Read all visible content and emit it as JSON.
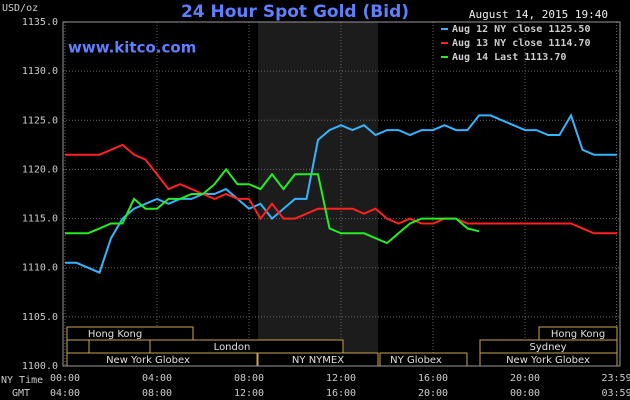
{
  "chart_data": {
    "type": "line",
    "title": "24 Hour Spot Gold (Bid)",
    "date": "August 14, 2015 19:40",
    "site": "www.kitco.com",
    "unit": "USD/oz",
    "x_label_ny": "NY Time",
    "x_label_gmt": "GMT",
    "sessions": [
      "Hong Kong",
      "Hong Kong",
      "London",
      "Sydney",
      "New York Globex",
      "NY NYMEX",
      "NY Globex",
      "New York Globex"
    ],
    "x": [
      0,
      0.5,
      1,
      1.5,
      2,
      2.5,
      3,
      3.5,
      4,
      4.5,
      5,
      5.5,
      6,
      6.5,
      7,
      7.5,
      8,
      8.5,
      9,
      9.5,
      10,
      10.5,
      11,
      11.5,
      12,
      12.5,
      13,
      13.5,
      14,
      14.5,
      15,
      15.5,
      16,
      16.5,
      17,
      17.5,
      18,
      18.5,
      19,
      19.5,
      20,
      20.5,
      21,
      21.5,
      22,
      22.5,
      23,
      23.5,
      24
    ],
    "series": [
      {
        "name": "Aug 12 NY close 1125.50",
        "color": "#33b5ff",
        "values": [
          1110.5,
          1110.5,
          1110,
          1109.5,
          1113,
          1115,
          1116,
          1116.5,
          1117,
          1116.5,
          1117,
          1117,
          1117.5,
          1117.5,
          1118,
          1117,
          1116,
          1116.5,
          1115,
          1116,
          1117,
          1117,
          1123,
          1124,
          1124.5,
          1124,
          1124.5,
          1123.5,
          1124,
          1124,
          1123.5,
          1124,
          1124,
          1124.5,
          1124,
          1124,
          1125.5,
          1125.5,
          1125,
          1124.5,
          1124,
          1124,
          1123.5,
          1123.5,
          1125.5,
          1122,
          1121.5,
          1121.5,
          1121.5
        ]
      },
      {
        "name": "Aug 13 NY close 1114.70",
        "color": "#ff2020",
        "values": [
          1121.5,
          1121.5,
          1121.5,
          1121.5,
          1122,
          1122.5,
          1121.5,
          1121,
          1119.5,
          1118,
          1118.5,
          1118,
          1117.5,
          1117,
          1117.5,
          1117,
          1117,
          1115,
          1116.5,
          1115,
          1115,
          1115.5,
          1116,
          1116,
          1116,
          1116,
          1115.5,
          1116,
          1115,
          1114.5,
          1115,
          1114.5,
          1114.5,
          1115,
          1115,
          1114.5,
          1114.5,
          1114.5,
          1114.5,
          1114.5,
          1114.5,
          1114.5,
          1114.5,
          1114.5,
          1114.5,
          1114,
          1113.5,
          1113.5,
          1113.5
        ]
      },
      {
        "name": "Aug 14 Last 1113.70",
        "color": "#22ee22",
        "values": [
          1113.5,
          1113.5,
          1113.5,
          1114,
          1114.5,
          1114.5,
          1117,
          1116,
          1116,
          1117,
          1117,
          1117.5,
          1117.5,
          1118.5,
          1120,
          1118.5,
          1118.5,
          1118,
          1119.5,
          1118,
          1119.5,
          1119.5,
          1119.5,
          1114,
          1113.5,
          1113.5,
          1113.5,
          1113,
          1112.5,
          1113.5,
          1114.5,
          1115,
          1115,
          1115,
          1115,
          1114,
          1113.7,
          null,
          null,
          null,
          null,
          null,
          null,
          null,
          null,
          null,
          null,
          null,
          null
        ]
      }
    ],
    "xlim": [
      0,
      24
    ],
    "xticks": [
      {
        "value": 0,
        "label": "00:00"
      },
      {
        "value": 4,
        "label": "04:00"
      },
      {
        "value": 8,
        "label": "08:00"
      },
      {
        "value": 12,
        "label": "12:00"
      },
      {
        "value": 16,
        "label": "16:00"
      },
      {
        "value": 20,
        "label": "20:00"
      },
      {
        "value": 23.98,
        "label": "23:59"
      }
    ],
    "gmt_labels": [
      "04:00",
      "08:00",
      "12:00",
      "16:00",
      "20:00",
      "00:00",
      "03:59"
    ],
    "ylim": [
      1100,
      1135
    ],
    "yticks": [
      {
        "value": 1100,
        "label": "1100.0"
      },
      {
        "value": 1105,
        "label": "1105.0"
      },
      {
        "value": 1110,
        "label": "1110.0"
      },
      {
        "value": 1115,
        "label": "1115.0"
      },
      {
        "value": 1120,
        "label": "1120.0"
      },
      {
        "value": 1125,
        "label": "1125.0"
      },
      {
        "value": 1130,
        "label": "1130.0"
      },
      {
        "value": 1135,
        "label": "1135.0"
      }
    ],
    "grid": true
  }
}
